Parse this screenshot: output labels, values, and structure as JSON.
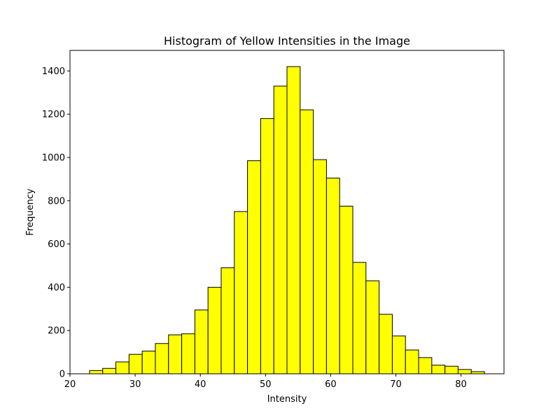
{
  "chart_data": {
    "type": "bar",
    "title": "Histogram of Yellow Intensities in the Image",
    "xlabel": "Intensity",
    "ylabel": "Frequency",
    "xlim": [
      20,
      86.6
    ],
    "ylim": [
      0,
      1495
    ],
    "xticks": [
      20,
      30,
      40,
      50,
      60,
      70,
      80
    ],
    "yticks": [
      0,
      200,
      400,
      600,
      800,
      1000,
      1200,
      1400
    ],
    "bar_color": "#ffff00",
    "edge_color": "#000000",
    "bin_start": 23.0,
    "bin_width": 2.02,
    "values": [
      15,
      25,
      55,
      90,
      105,
      140,
      180,
      185,
      295,
      400,
      490,
      750,
      985,
      1180,
      1330,
      1420,
      1220,
      990,
      905,
      775,
      515,
      430,
      275,
      175,
      110,
      75,
      40,
      35,
      20,
      10
    ],
    "grid": false
  }
}
